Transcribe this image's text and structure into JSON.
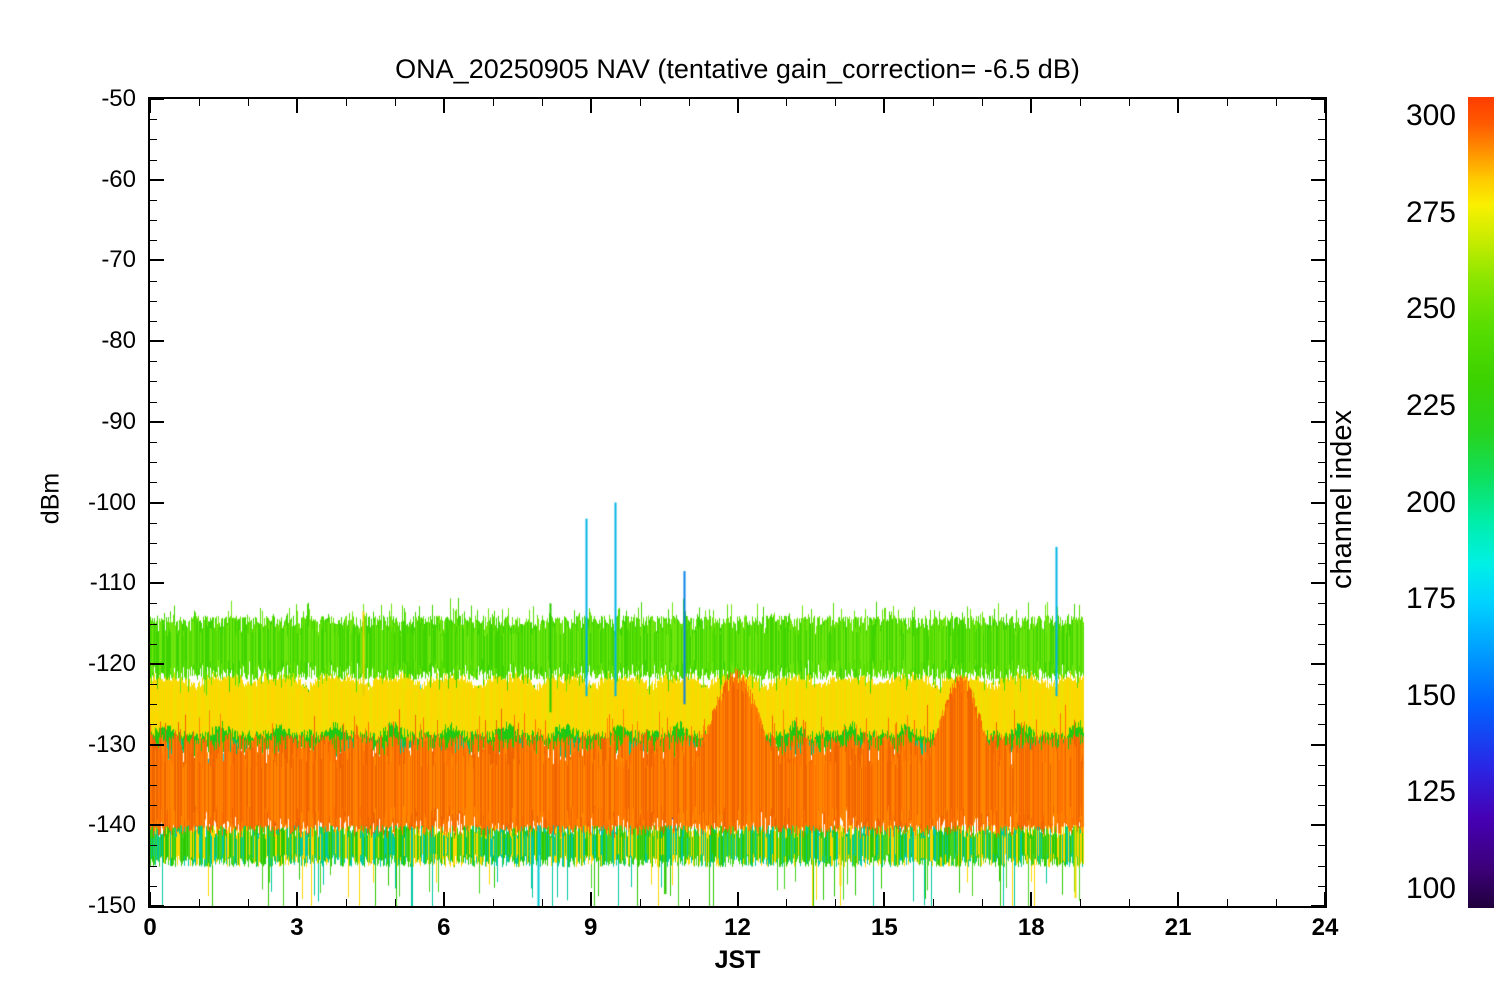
{
  "chart_data": {
    "type": "line",
    "title": "ONA_20250905 NAV (tentative gain_correction= -6.5 dB)",
    "xlabel": "JST",
    "ylabel": "dBm",
    "xlim": [
      0,
      24
    ],
    "ylim": [
      -150,
      -50
    ],
    "xticks": [
      0,
      3,
      6,
      9,
      12,
      15,
      18,
      21,
      24
    ],
    "x_minor_step": 1,
    "yticks": [
      -50,
      -60,
      -70,
      -80,
      -90,
      -100,
      -110,
      -120,
      -130,
      -140,
      -150
    ],
    "y_minor_step": 2.5,
    "data_x_range": [
      0,
      19.05
    ],
    "grid": false,
    "colorbar": {
      "label": "channel index",
      "ticks": [
        300,
        275,
        250,
        225,
        200,
        175,
        150,
        125,
        100
      ],
      "range": [
        95,
        305
      ],
      "stops": [
        {
          "v": 95,
          "color": "#20003c"
        },
        {
          "v": 105,
          "color": "#3c0078"
        },
        {
          "v": 118,
          "color": "#4600b4"
        },
        {
          "v": 132,
          "color": "#2828e6"
        },
        {
          "v": 148,
          "color": "#0064ff"
        },
        {
          "v": 162,
          "color": "#00a0ff"
        },
        {
          "v": 174,
          "color": "#00d2ff"
        },
        {
          "v": 184,
          "color": "#00f0e6"
        },
        {
          "v": 195,
          "color": "#00eeaa"
        },
        {
          "v": 206,
          "color": "#0ee060"
        },
        {
          "v": 218,
          "color": "#28d41e"
        },
        {
          "v": 232,
          "color": "#3cd200"
        },
        {
          "v": 246,
          "color": "#5ade00"
        },
        {
          "v": 258,
          "color": "#8ce600"
        },
        {
          "v": 268,
          "color": "#c8ec00"
        },
        {
          "v": 277,
          "color": "#faf000"
        },
        {
          "v": 284,
          "color": "#ffc800"
        },
        {
          "v": 291,
          "color": "#ff9100"
        },
        {
          "v": 298,
          "color": "#ff5a00"
        },
        {
          "v": 305,
          "color": "#ff3c00"
        }
      ]
    },
    "bands": [
      {
        "name": "blue-traces",
        "channel_range": [
          125,
          150
        ],
        "colors": [
          "#1e3cc8",
          "#2850e0"
        ],
        "center": -130,
        "amp": 6.5,
        "passes": 1,
        "sparsity": 0.22,
        "thin": true,
        "x_start": 0,
        "x_end": 19.05
      },
      {
        "name": "cyan-traces",
        "channel_range": [
          160,
          180
        ],
        "colors": [
          "#00b4e6",
          "#28d2f0"
        ],
        "center": -129.5,
        "amp": 7,
        "passes": 1,
        "sparsity": 0.3,
        "thin": true,
        "x_start": 0,
        "x_end": 19.05
      },
      {
        "name": "teal-wavy",
        "channel_range": [
          185,
          205
        ],
        "colors": [
          "#00c88c",
          "#00be6e"
        ],
        "center": -128,
        "amp": 4.2,
        "passes": 1,
        "wavy": true,
        "x_start": 0,
        "x_end": 19.05
      },
      {
        "name": "mid-green-wavy",
        "channel_range": [
          210,
          235
        ],
        "colors": [
          "#2bc800",
          "#18c81e"
        ],
        "center": -127,
        "amp": 4.6,
        "passes": 2,
        "wavy": true,
        "x_start": 0,
        "x_end": 19.05
      },
      {
        "name": "yellow-wavy",
        "channel_range": [
          265,
          285
        ],
        "colors": [
          "#ffd700",
          "#f0e000"
        ],
        "center": -125.2,
        "amp": 4.4,
        "passes": 2,
        "wavy": true,
        "x_start": 0,
        "x_end": 19.05,
        "boosts": [
          {
            "x": 14.4,
            "w": 1.5,
            "peak": -122,
            "noisy": true
          },
          {
            "x": 8.2,
            "w": 0.3,
            "peak": -122.5,
            "noisy": true
          }
        ]
      },
      {
        "name": "top-green-band",
        "channel_range": [
          235,
          255
        ],
        "colors": [
          "#3fd400",
          "#55dc00",
          "#6ee60e"
        ],
        "center": -118,
        "amp": 4.0,
        "passes": 3,
        "whisker": 0.1,
        "x_start": 0,
        "x_end": 19.05
      },
      {
        "name": "orange-band",
        "channel_range": [
          290,
          305
        ],
        "colors": [
          "#ff7300",
          "#ff8700",
          "#f06400"
        ],
        "center": -135.3,
        "amp": 6.6,
        "passes": 3,
        "whisker": 0.1,
        "x_start": 0,
        "x_end": 19.05,
        "boosts": [
          {
            "x": 11.95,
            "w": 0.5,
            "peak": -120.5
          },
          {
            "x": 16.55,
            "w": 0.42,
            "peak": -121
          }
        ]
      },
      {
        "name": "bottom-fringe",
        "channel_range": [
          200,
          280
        ],
        "colors": [
          "#2bc800",
          "#ffd700",
          "#00c8a0",
          "#46d41e"
        ],
        "center": -142.6,
        "amp": 2.6,
        "passes": 2,
        "down_spike": 0.05,
        "x_start": 0,
        "x_end": 19.05
      }
    ],
    "spikes": [
      {
        "x": 4.35,
        "y_peak": -113.5,
        "y_base": -124,
        "color": "#e6d200"
      },
      {
        "x": 8.17,
        "y_peak": -112.5,
        "y_base": -126,
        "color": "#2bc800"
      },
      {
        "x": 8.9,
        "y_peak": -102,
        "y_base": -124,
        "color": "#00b4e6"
      },
      {
        "x": 9.5,
        "y_peak": -100,
        "y_base": -124,
        "color": "#00b4e6"
      },
      {
        "x": 10.9,
        "y_peak": -108.5,
        "y_base": -125,
        "color": "#0a82e6"
      },
      {
        "x": 18.5,
        "y_peak": -105.5,
        "y_base": -124,
        "color": "#00b4e6"
      }
    ],
    "down_spikes": [
      {
        "x": 7.93,
        "y_peak": -150,
        "y_base": -140,
        "color": "#00c8d2"
      },
      {
        "x": 10.52,
        "y_peak": -148.5,
        "y_base": -140,
        "color": "#2bc800"
      },
      {
        "x": 14.1,
        "y_peak": -147.5,
        "y_base": -140,
        "color": "#ffd700"
      },
      {
        "x": 18.9,
        "y_peak": -149,
        "y_base": -140,
        "color": "#f0e000"
      }
    ]
  }
}
